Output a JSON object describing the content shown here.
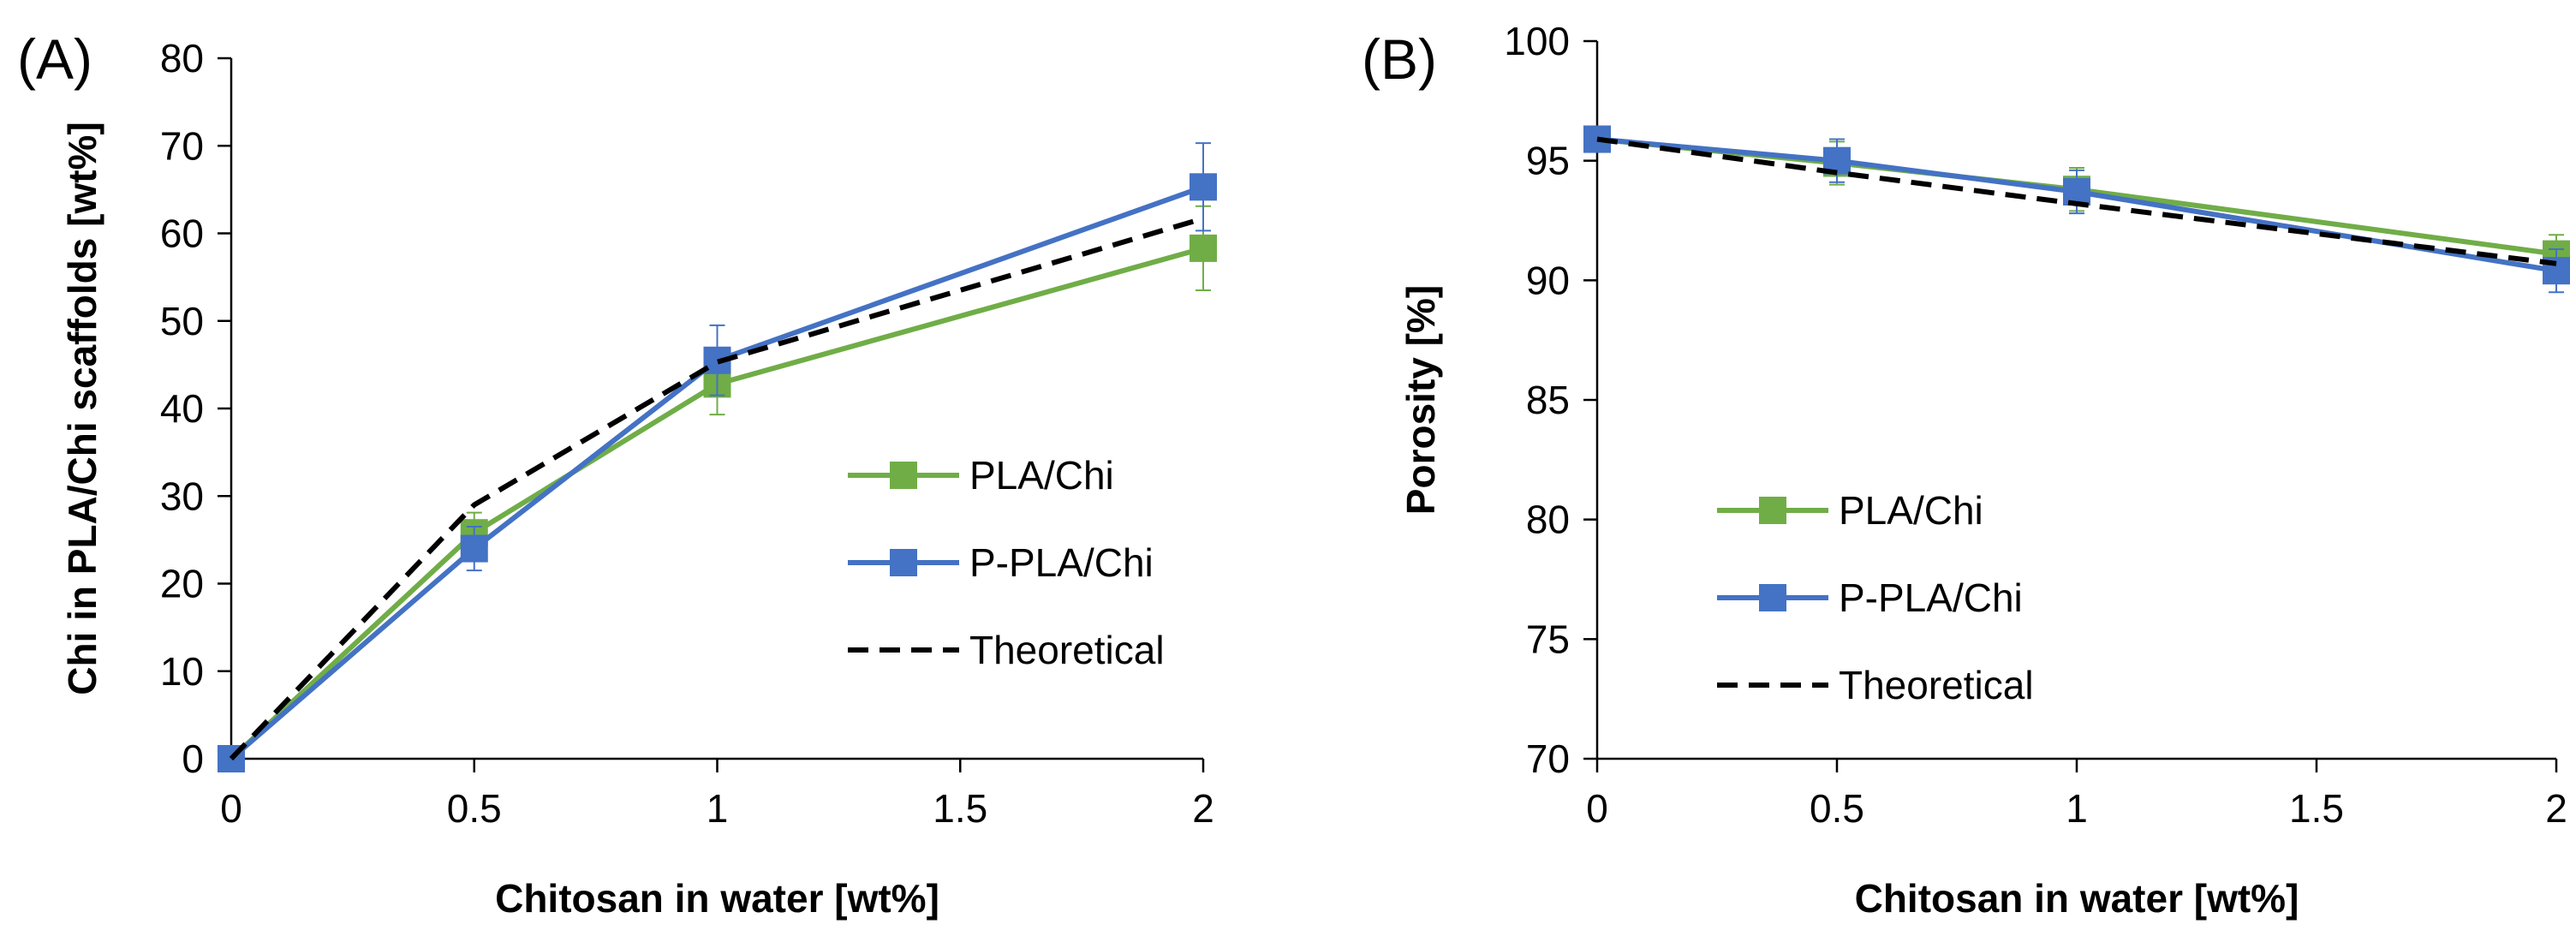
{
  "chart_data": [
    {
      "panel": "(A)",
      "type": "line",
      "title": "",
      "xlabel": "Chitosan in water [wt%]",
      "ylabel": "Chi in PLA/Chi scaffolds [wt%]",
      "x": [
        0,
        0.5,
        1,
        2
      ],
      "xlim": [
        0,
        2
      ],
      "xticks": [
        "0",
        "0.5",
        "1",
        "1.5",
        "2"
      ],
      "ylim": [
        0,
        80
      ],
      "yticks": [
        "0",
        "10",
        "20",
        "30",
        "40",
        "50",
        "60",
        "70",
        "80"
      ],
      "grid": false,
      "legend": "right",
      "series": [
        {
          "name": "PLA/Chi",
          "color": "#70AD47",
          "style": "solid-square",
          "values": [
            0,
            25.8,
            42.8,
            58.3
          ],
          "errors": [
            0,
            2.3,
            3.5,
            4.8
          ]
        },
        {
          "name": "P-PLA/Chi",
          "color": "#4472C4",
          "style": "solid-square",
          "values": [
            0,
            24.0,
            45.5,
            65.3
          ],
          "errors": [
            0,
            2.5,
            4.0,
            5.0
          ]
        },
        {
          "name": "Theoretical",
          "color": "#000000",
          "style": "dashed",
          "values": [
            0,
            29.0,
            45.3,
            61.7
          ]
        }
      ]
    },
    {
      "panel": "(B)",
      "type": "line",
      "title": "",
      "xlabel": "Chitosan in water [wt%]",
      "ylabel": "Porosity [%]",
      "x": [
        0,
        0.5,
        1,
        2
      ],
      "xlim": [
        0,
        2
      ],
      "xticks": [
        "0",
        "0.5",
        "1",
        "1.5",
        "2"
      ],
      "ylim": [
        70,
        100
      ],
      "yticks": [
        "70",
        "75",
        "80",
        "85",
        "90",
        "95",
        "100"
      ],
      "grid": false,
      "legend": "center-left",
      "series": [
        {
          "name": "PLA/Chi",
          "color": "#70AD47",
          "style": "solid-square",
          "values": [
            95.9,
            94.9,
            93.8,
            91.1
          ],
          "errors": [
            0.2,
            0.9,
            0.9,
            0.8
          ]
        },
        {
          "name": "P-PLA/Chi",
          "color": "#4472C4",
          "style": "solid-square",
          "values": [
            95.9,
            95.0,
            93.7,
            90.4
          ],
          "errors": [
            0.2,
            0.9,
            0.9,
            0.9
          ]
        },
        {
          "name": "Theoretical",
          "color": "#000000",
          "style": "dashed",
          "values": [
            95.9,
            94.5,
            93.2,
            90.7
          ]
        }
      ]
    }
  ]
}
